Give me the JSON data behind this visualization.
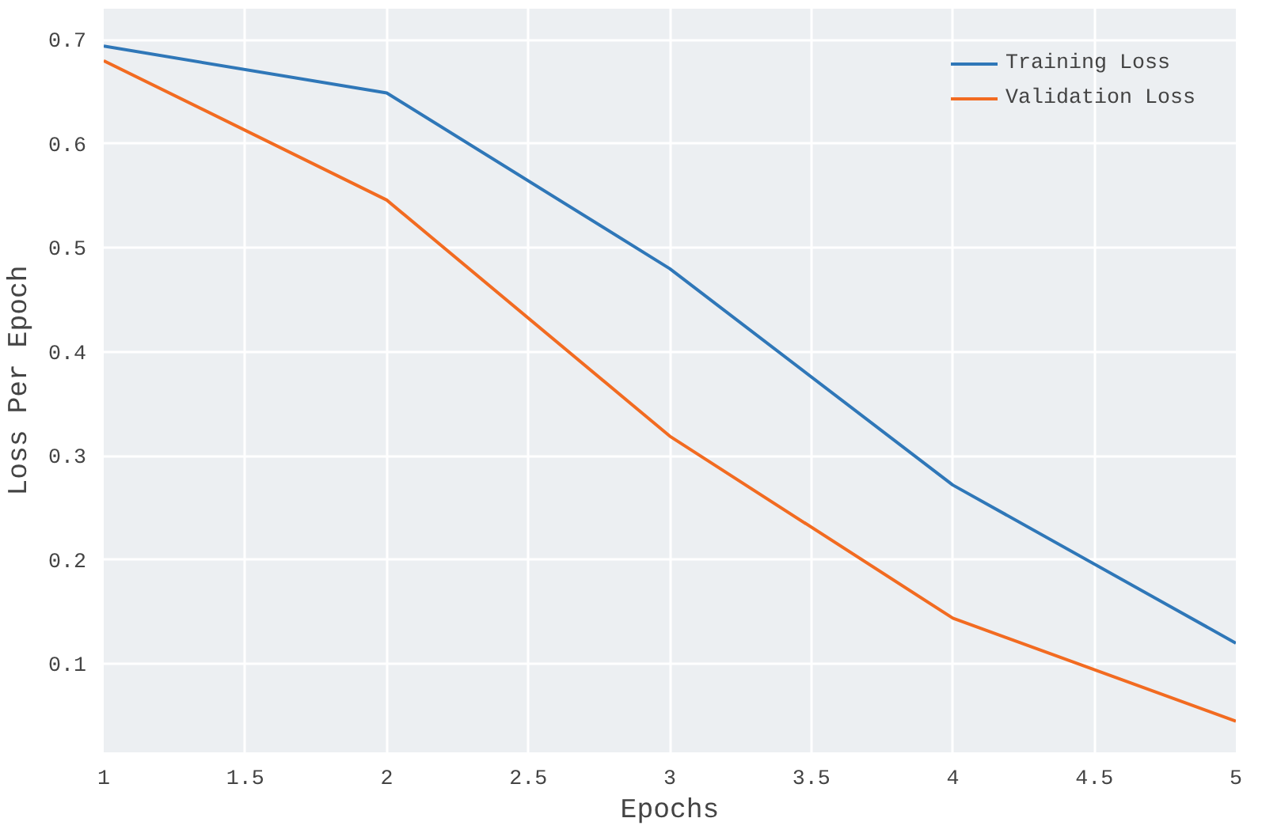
{
  "chart_data": {
    "type": "line",
    "xlabel": "Epochs",
    "ylabel": "Loss Per Epoch",
    "x": [
      1,
      2,
      3,
      4,
      5
    ],
    "series": [
      {
        "name": "Training Loss",
        "color": "#2f77b8",
        "values": [
          0.694,
          0.649,
          0.48,
          0.272,
          0.12
        ]
      },
      {
        "name": "Validation Loss",
        "color": "#f26b21",
        "values": [
          0.68,
          0.546,
          0.319,
          0.144,
          0.045
        ]
      }
    ],
    "xlim": [
      1,
      5
    ],
    "ylim": [
      0.015,
      0.73
    ],
    "xticks": [
      1,
      1.5,
      2,
      2.5,
      3,
      3.5,
      4,
      4.5,
      5
    ],
    "yticks": [
      0.1,
      0.2,
      0.3,
      0.4,
      0.5,
      0.6,
      0.7
    ],
    "grid": true,
    "legend": "top right",
    "line_style": "solid",
    "marker": "none"
  }
}
